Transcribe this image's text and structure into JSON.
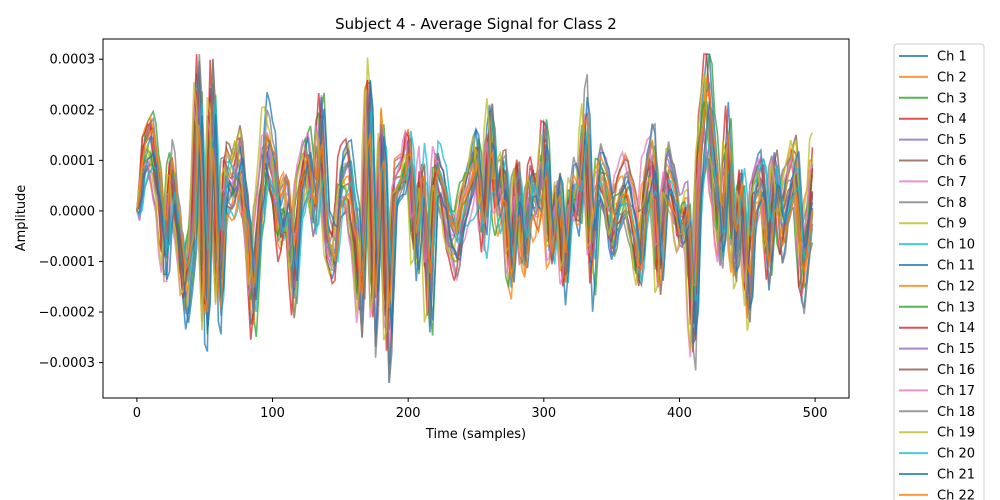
{
  "chart_data": {
    "type": "line",
    "title": "Subject 4 - Average Signal for Class 2",
    "xlabel": "Time (samples)",
    "ylabel": "Amplitude",
    "xlim": [
      -25,
      525
    ],
    "ylim": [
      -0.00037,
      0.00034
    ],
    "x_ticks": [
      0,
      100,
      200,
      300,
      400,
      500
    ],
    "x_tick_labels": [
      "0",
      "100",
      "200",
      "300",
      "400",
      "500"
    ],
    "y_ticks": [
      -0.0003,
      -0.0002,
      -0.0001,
      0.0,
      0.0001,
      0.0002,
      0.0003
    ],
    "y_tick_labels": [
      "−0.0003",
      "−0.0002",
      "−0.0001",
      "0.0000",
      "0.0001",
      "0.0002",
      "0.0003"
    ],
    "grid": false,
    "legend_position": "outside-right",
    "samples": 500,
    "legend_labels": [
      "Ch 1",
      "Ch 2",
      "Ch 3",
      "Ch 4",
      "Ch 5",
      "Ch 6",
      "Ch 7",
      "Ch 8",
      "Ch 9",
      "Ch 10",
      "Ch 11",
      "Ch 12",
      "Ch 13",
      "Ch 14",
      "Ch 15",
      "Ch 16",
      "Ch 17",
      "Ch 18",
      "Ch 19",
      "Ch 20",
      "Ch 21",
      "Ch 22"
    ],
    "series_colors": [
      "#1f77b4",
      "#ff7f0e",
      "#2ca02c",
      "#d62728",
      "#9467bd",
      "#8c564b",
      "#e377c2",
      "#7f7f7f",
      "#bcbd22",
      "#17becf",
      "#1f77b4",
      "#ff7f0e",
      "#2ca02c",
      "#d62728",
      "#9467bd",
      "#8c564b",
      "#e377c2",
      "#7f7f7f",
      "#bcbd22",
      "#17becf",
      "#1f77b4",
      "#ff7f0e"
    ],
    "envelope": {
      "x": [
        0,
        5,
        10,
        15,
        20,
        25,
        30,
        35,
        40,
        45,
        50,
        55,
        60,
        65,
        70,
        75,
        80,
        85,
        90,
        95,
        100,
        105,
        110,
        115,
        120,
        125,
        130,
        135,
        140,
        145,
        150,
        155,
        160,
        165,
        170,
        175,
        180,
        185,
        190,
        195,
        200,
        205,
        210,
        215,
        220,
        225,
        230,
        235,
        240,
        245,
        250,
        255,
        260,
        265,
        270,
        275,
        280,
        285,
        290,
        295,
        300,
        305,
        310,
        315,
        320,
        325,
        330,
        335,
        340,
        345,
        350,
        355,
        360,
        365,
        370,
        375,
        380,
        385,
        390,
        395,
        400,
        405,
        410,
        415,
        420,
        425,
        430,
        435,
        440,
        445,
        450,
        455,
        460,
        465,
        470,
        475,
        480,
        485,
        490,
        495,
        499
      ],
      "y": [
        0.0,
        0.00012,
        0.00015,
        5e-05,
        -0.00012,
        8e-05,
        -5e-05,
        -0.00019,
        -8e-05,
        0.00029,
        -0.00025,
        0.00027,
        -0.0002,
        8e-05,
        5e-05,
        0.00012,
        0.0,
        -0.00022,
        0.0,
        0.00016,
        0.0001,
        -4e-05,
        2e-05,
        -0.00017,
        5e-05,
        0.00012,
        0.0,
        0.0002,
        -6e-05,
        -0.0001,
        8e-05,
        0.0001,
        -2e-05,
        -0.0002,
        0.00028,
        -0.00022,
        0.00018,
        -0.00028,
        6e-05,
        8e-05,
        0.00016,
        -8e-05,
        0.0001,
        -0.0002,
        0.0001,
        5e-05,
        -5e-05,
        -9e-05,
        0.0,
        5e-05,
        0.00012,
        -5e-05,
        0.00018,
        0.0,
        7e-05,
        -0.00015,
        5e-05,
        -0.00012,
        5e-05,
        0.0,
        0.00015,
        -0.0001,
        5e-05,
        -0.00015,
        5e-05,
        0.0,
        0.0002,
        -0.00012,
        8e-05,
        5e-05,
        -5e-05,
        3e-05,
        7e-05,
        0.0,
        -0.0001,
        8e-05,
        0.00014,
        -0.00012,
        0.0001,
        5e-05,
        -5e-05,
        0.0,
        -0.00028,
        0.00015,
        0.00028,
        0.0001,
        -8e-05,
        0.00015,
        -0.00012,
        5e-05,
        -0.0002,
        4e-05,
        8e-05,
        -0.0001,
        8e-05,
        -4e-05,
        5e-05,
        0.0001,
        -0.00015,
        -5e-05,
        0.0001
      ]
    }
  }
}
